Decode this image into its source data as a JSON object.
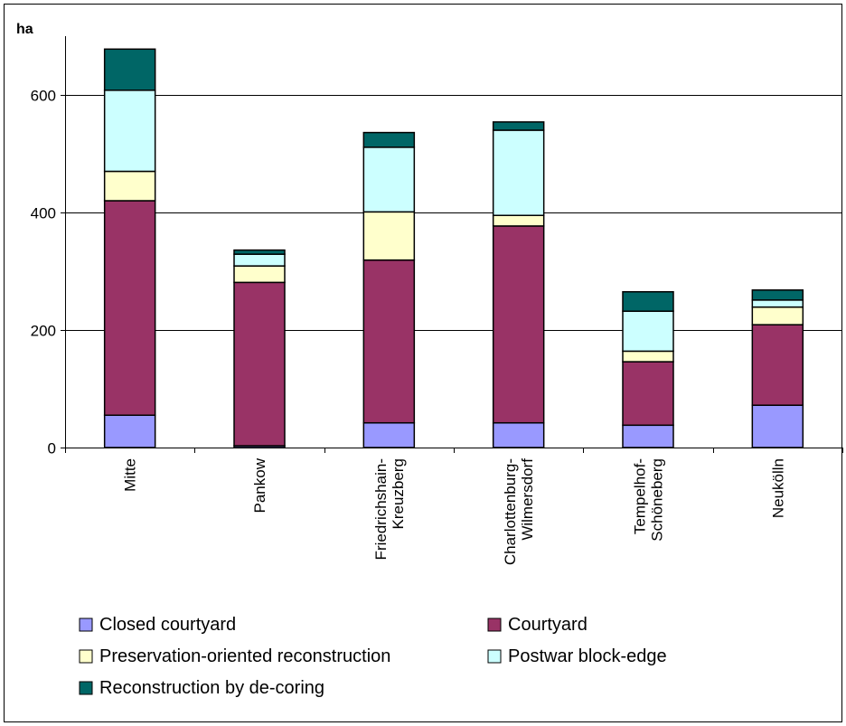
{
  "chart_data": {
    "type": "bar",
    "stacked": true,
    "unit_label": "ha",
    "categories": [
      "Mitte",
      "Pankow",
      "Friedrichshain-\nKreuzberg",
      "Charlottenburg-\nWilmersdorf",
      "Tempelhof-\nSchöneberg",
      "Neukölln"
    ],
    "series": [
      {
        "name": "Closed courtyard",
        "color": "#9999ff",
        "values": [
          55,
          3,
          42,
          42,
          38,
          72
        ]
      },
      {
        "name": "Courtyard",
        "color": "#993366",
        "values": [
          365,
          278,
          277,
          335,
          108,
          137
        ]
      },
      {
        "name": "Preservation-oriented reconstruction",
        "color": "#ffffcc",
        "values": [
          50,
          28,
          82,
          18,
          18,
          30
        ]
      },
      {
        "name": "Postwar block-edge",
        "color": "#ccffff",
        "values": [
          138,
          20,
          110,
          145,
          68,
          12
        ]
      },
      {
        "name": "Reconstruction by de-coring",
        "color": "#006666",
        "values": [
          70,
          7,
          25,
          14,
          33,
          17
        ]
      }
    ],
    "yticks": [
      0,
      200,
      400,
      600
    ],
    "ylim": [
      0,
      700
    ],
    "grid": true,
    "legend_position": "bottom"
  }
}
